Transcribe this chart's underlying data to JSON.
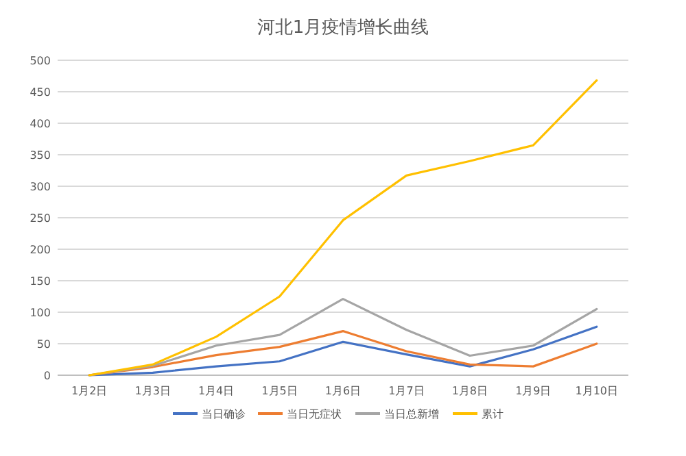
{
  "chart_data": {
    "type": "line",
    "title": "河北1月疫情增长曲线",
    "categories": [
      "1月2日",
      "1月3日",
      "1月4日",
      "1月5日",
      "1月6日",
      "1月7日",
      "1月8日",
      "1月9日",
      "1月10日"
    ],
    "series": [
      {
        "name": "当日确诊",
        "color": "#4472c4",
        "values": [
          0,
          4,
          14,
          22,
          53,
          33,
          14,
          41,
          77
        ]
      },
      {
        "name": "当日无症状",
        "color": "#ed7d31",
        "values": [
          0,
          13,
          32,
          45,
          70,
          38,
          17,
          14,
          50
        ]
      },
      {
        "name": "当日总新增",
        "color": "#a5a5a5",
        "values": [
          0,
          15,
          47,
          64,
          121,
          72,
          31,
          47,
          105
        ]
      },
      {
        "name": "累计",
        "color": "#ffc000",
        "values": [
          0,
          17,
          61,
          125,
          246,
          317,
          340,
          365,
          468
        ]
      }
    ],
    "ylim": [
      0,
      500
    ],
    "yticks": [
      0,
      50,
      100,
      150,
      200,
      250,
      300,
      350,
      400,
      450,
      500
    ],
    "grid": "y",
    "legend": "bottom",
    "marker": "none",
    "line_style": "solid"
  }
}
